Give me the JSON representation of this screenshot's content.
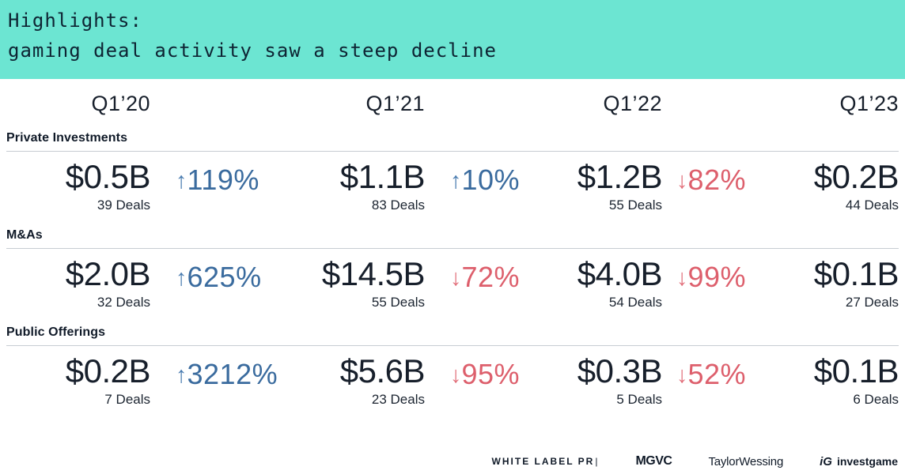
{
  "banner": {
    "title": "Highlights:",
    "subtitle": "gaming deal activity saw a steep decline",
    "bg_color": "#6ce5d2",
    "text_color": "#0e2433"
  },
  "quarters": [
    "Q1’20",
    "Q1’21",
    "Q1’22",
    "Q1’23"
  ],
  "colors": {
    "up_pct": "#3a6b9e",
    "down_pct": "#dd5f6c",
    "text": "#171f2b",
    "divider": "#c7ccd3",
    "background": "#ffffff"
  },
  "sections": [
    {
      "label": "Private Investments",
      "values": [
        {
          "amount": "$0.5B",
          "deals": "39 Deals"
        },
        {
          "amount": "$1.1B",
          "deals": "83 Deals"
        },
        {
          "amount": "$1.2B",
          "deals": "55 Deals"
        },
        {
          "amount": "$0.2B",
          "deals": "44 Deals"
        }
      ],
      "changes": [
        {
          "direction": "up",
          "arrow": "↑",
          "pct": "119%"
        },
        {
          "direction": "up",
          "arrow": "↑",
          "pct": "10%"
        },
        {
          "direction": "down",
          "arrow": "↓",
          "pct": "82%"
        }
      ]
    },
    {
      "label": "M&As",
      "values": [
        {
          "amount": "$2.0B",
          "deals": "32 Deals"
        },
        {
          "amount": "$14.5B",
          "deals": "55 Deals"
        },
        {
          "amount": "$4.0B",
          "deals": "54 Deals"
        },
        {
          "amount": "$0.1B",
          "deals": "27 Deals"
        }
      ],
      "changes": [
        {
          "direction": "up",
          "arrow": "↑",
          "pct": "625%"
        },
        {
          "direction": "down",
          "arrow": "↓",
          "pct": "72%"
        },
        {
          "direction": "down",
          "arrow": "↓",
          "pct": "99%"
        }
      ]
    },
    {
      "label": "Public Offerings",
      "values": [
        {
          "amount": "$0.2B",
          "deals": "7 Deals"
        },
        {
          "amount": "$5.6B",
          "deals": "23 Deals"
        },
        {
          "amount": "$0.3B",
          "deals": "5 Deals"
        },
        {
          "amount": "$0.1B",
          "deals": "6 Deals"
        }
      ],
      "changes": [
        {
          "direction": "up",
          "arrow": "↑",
          "pct": "3212%"
        },
        {
          "direction": "down",
          "arrow": "↓",
          "pct": "95%"
        },
        {
          "direction": "down",
          "arrow": "↓",
          "pct": "52%"
        }
      ]
    }
  ],
  "footer": {
    "logo_white_label_pr": "WHITE LABEL PR",
    "logo_white_label_pr_bar": "|",
    "logo_mgvc": "MGVC",
    "logo_taylor_wessing": "TaylorWessing",
    "logo_investgame_mark": "iG",
    "logo_investgame": "investgame"
  },
  "chart_data": {
    "type": "table",
    "title": "Highlights: gaming deal activity saw a steep decline",
    "categories": [
      "Q1'20",
      "Q1'21",
      "Q1'22",
      "Q1'23"
    ],
    "series": [
      {
        "name": "Private Investments",
        "value_usd_billions": [
          0.5,
          1.1,
          1.2,
          0.2
        ],
        "deals": [
          39,
          83,
          55,
          44
        ],
        "yoy_change_pct": [
          119,
          10,
          -82
        ]
      },
      {
        "name": "M&As",
        "value_usd_billions": [
          2.0,
          14.5,
          4.0,
          0.1
        ],
        "deals": [
          32,
          55,
          54,
          27
        ],
        "yoy_change_pct": [
          625,
          -72,
          -99
        ]
      },
      {
        "name": "Public Offerings",
        "value_usd_billions": [
          0.2,
          5.6,
          0.3,
          0.1
        ],
        "deals": [
          7,
          23,
          5,
          6
        ],
        "yoy_change_pct": [
          3212,
          -95,
          -52
        ]
      }
    ],
    "legend_position": "none",
    "grid": false
  }
}
